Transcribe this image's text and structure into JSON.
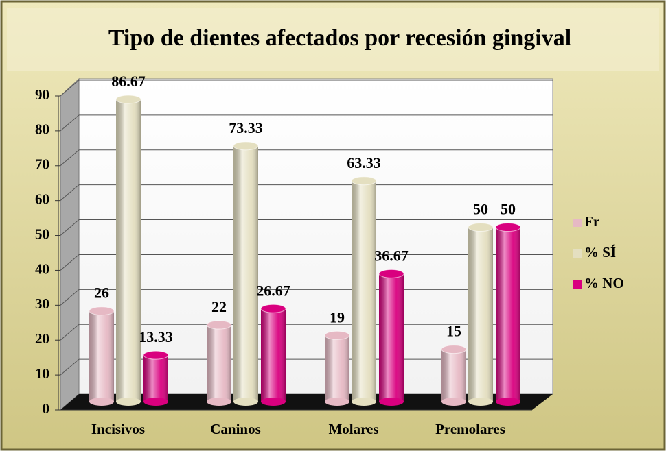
{
  "chart_data": {
    "type": "bar",
    "title": "Tipo de dientes afectados por recesión gingival",
    "categories": [
      "Incisivos",
      "Caninos",
      "Molares",
      "Premolares"
    ],
    "series": [
      {
        "name": "Fr",
        "color": "#e6b9c4",
        "values": [
          26,
          22,
          19,
          15
        ]
      },
      {
        "name": "% SÍ",
        "color": "#e4dfc0",
        "values": [
          86.67,
          73.33,
          63.33,
          50
        ]
      },
      {
        "name": "% NO",
        "color": "#d9007f",
        "values": [
          13.33,
          26.67,
          36.67,
          50
        ]
      }
    ],
    "ylim": [
      0,
      90
    ],
    "yticks": [
      0,
      10,
      20,
      30,
      40,
      50,
      60,
      70,
      80,
      90
    ],
    "grid": true,
    "legend": "right"
  }
}
